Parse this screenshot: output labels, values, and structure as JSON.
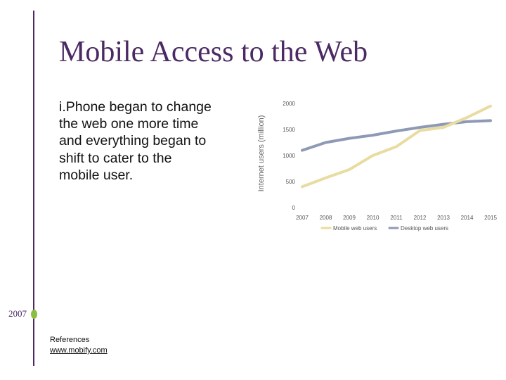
{
  "slide": {
    "title": "Mobile Access to the Web",
    "body_lines": [
      "i.Phone began to change",
      "the web one more time",
      "and everything began to",
      "shift to cater to the",
      "mobile user."
    ],
    "timeline_year": "2007",
    "references_label": "References",
    "references_link": "www.mobify.com"
  },
  "colors": {
    "title": "#4b2a63",
    "timeline": "#4b2a63",
    "timeline_dot": "#8cbf3f",
    "mobile_series": "#e8dca0",
    "desktop_series": "#8e9ab5"
  },
  "chart_data": {
    "type": "line",
    "ylabel": "Internet users (million)",
    "xlabel": "",
    "x": [
      "2007",
      "2008",
      "2009",
      "2010",
      "2011",
      "2012",
      "2013",
      "2014",
      "2015"
    ],
    "y_ticks": [
      "0",
      "500",
      "1000",
      "1500",
      "2000"
    ],
    "ylim": [
      0,
      2000
    ],
    "grid": false,
    "legend_position": "bottom",
    "series": [
      {
        "name": "Mobile web users",
        "color": "#e8dca0",
        "values": [
          400,
          570,
          730,
          1000,
          1170,
          1480,
          1540,
          1730,
          1950
        ]
      },
      {
        "name": "Desktop web users",
        "color": "#8e9ab5",
        "values": [
          1100,
          1250,
          1330,
          1390,
          1470,
          1540,
          1600,
          1650,
          1670
        ]
      }
    ]
  }
}
